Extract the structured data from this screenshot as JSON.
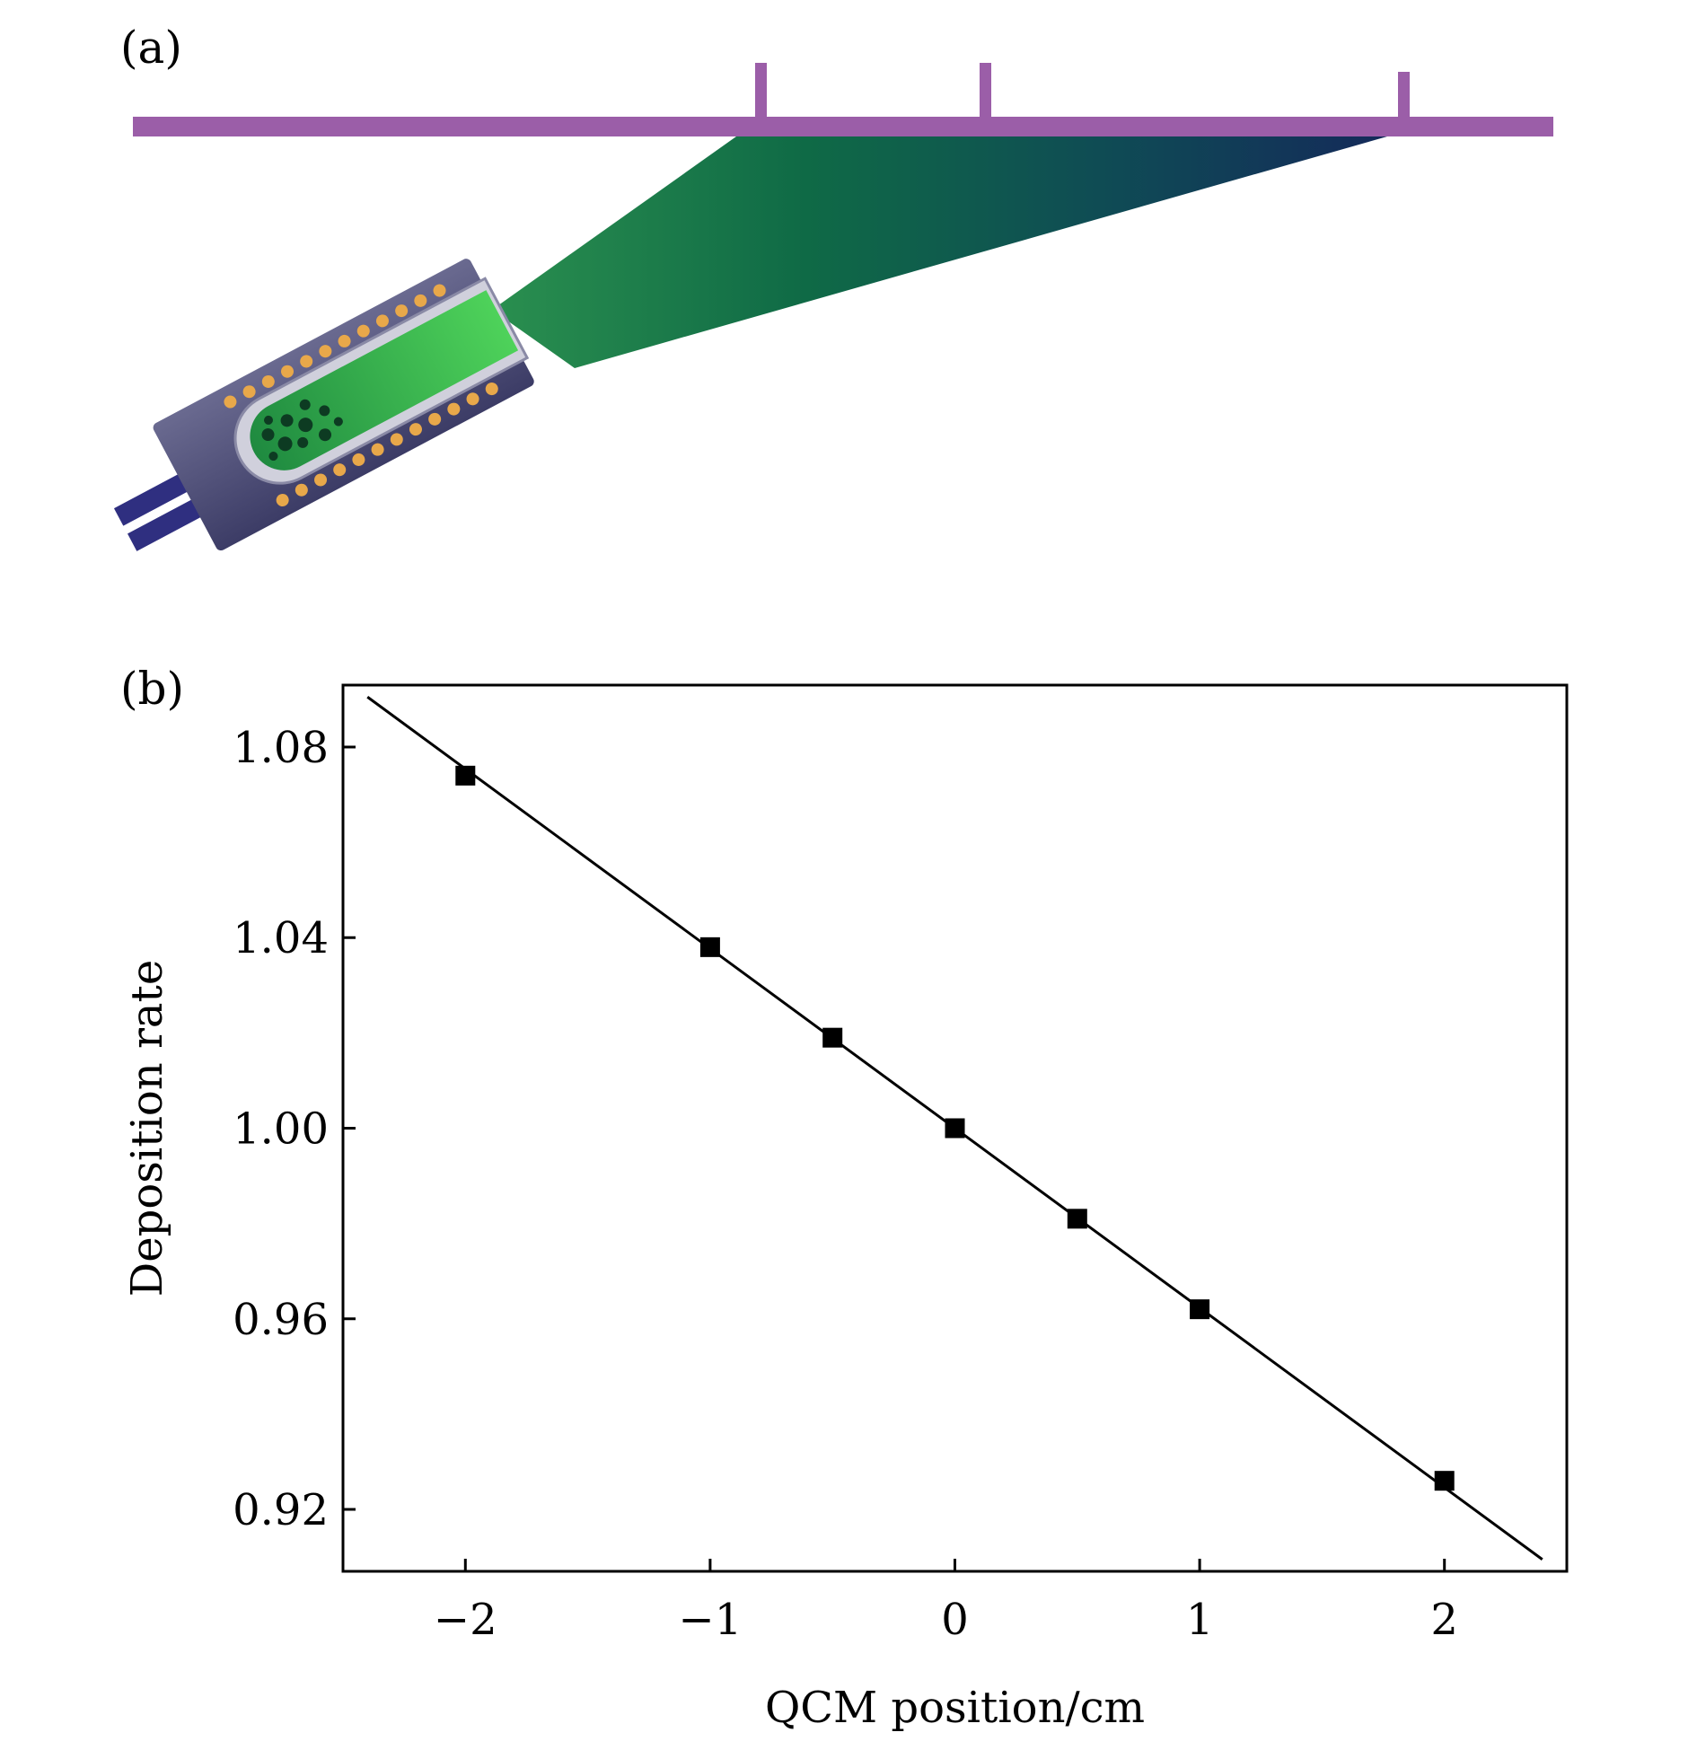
{
  "panel_a": {
    "label": "(a)"
  },
  "panel_b": {
    "label": "(b)"
  },
  "chart_data": {
    "type": "scatter",
    "title": "",
    "xlabel": "QCM position/cm",
    "ylabel": "Deposition rate",
    "xlim": [
      -2.5,
      2.5
    ],
    "ylim": [
      0.907,
      1.093
    ],
    "xticks": [
      -2,
      -1,
      0,
      1,
      2
    ],
    "xtick_labels": [
      "−2",
      "−1",
      "0",
      "1",
      "2"
    ],
    "yticks": [
      0.92,
      0.96,
      1.0,
      1.04,
      1.08
    ],
    "ytick_labels": [
      "0.92",
      "0.96",
      "1.00",
      "1.04",
      "1.08"
    ],
    "grid": false,
    "series": [
      {
        "x": [
          -2,
          -1,
          -0.5,
          0,
          0.5,
          1,
          2
        ],
        "y": [
          1.074,
          1.038,
          1.019,
          1.0,
          0.981,
          0.962,
          0.926
        ],
        "marker": "square",
        "color": "#000000"
      }
    ],
    "fit_line": {
      "x": [
        -2.4,
        2.4
      ],
      "y": [
        1.0905,
        0.9095
      ],
      "color": "#000000"
    }
  }
}
